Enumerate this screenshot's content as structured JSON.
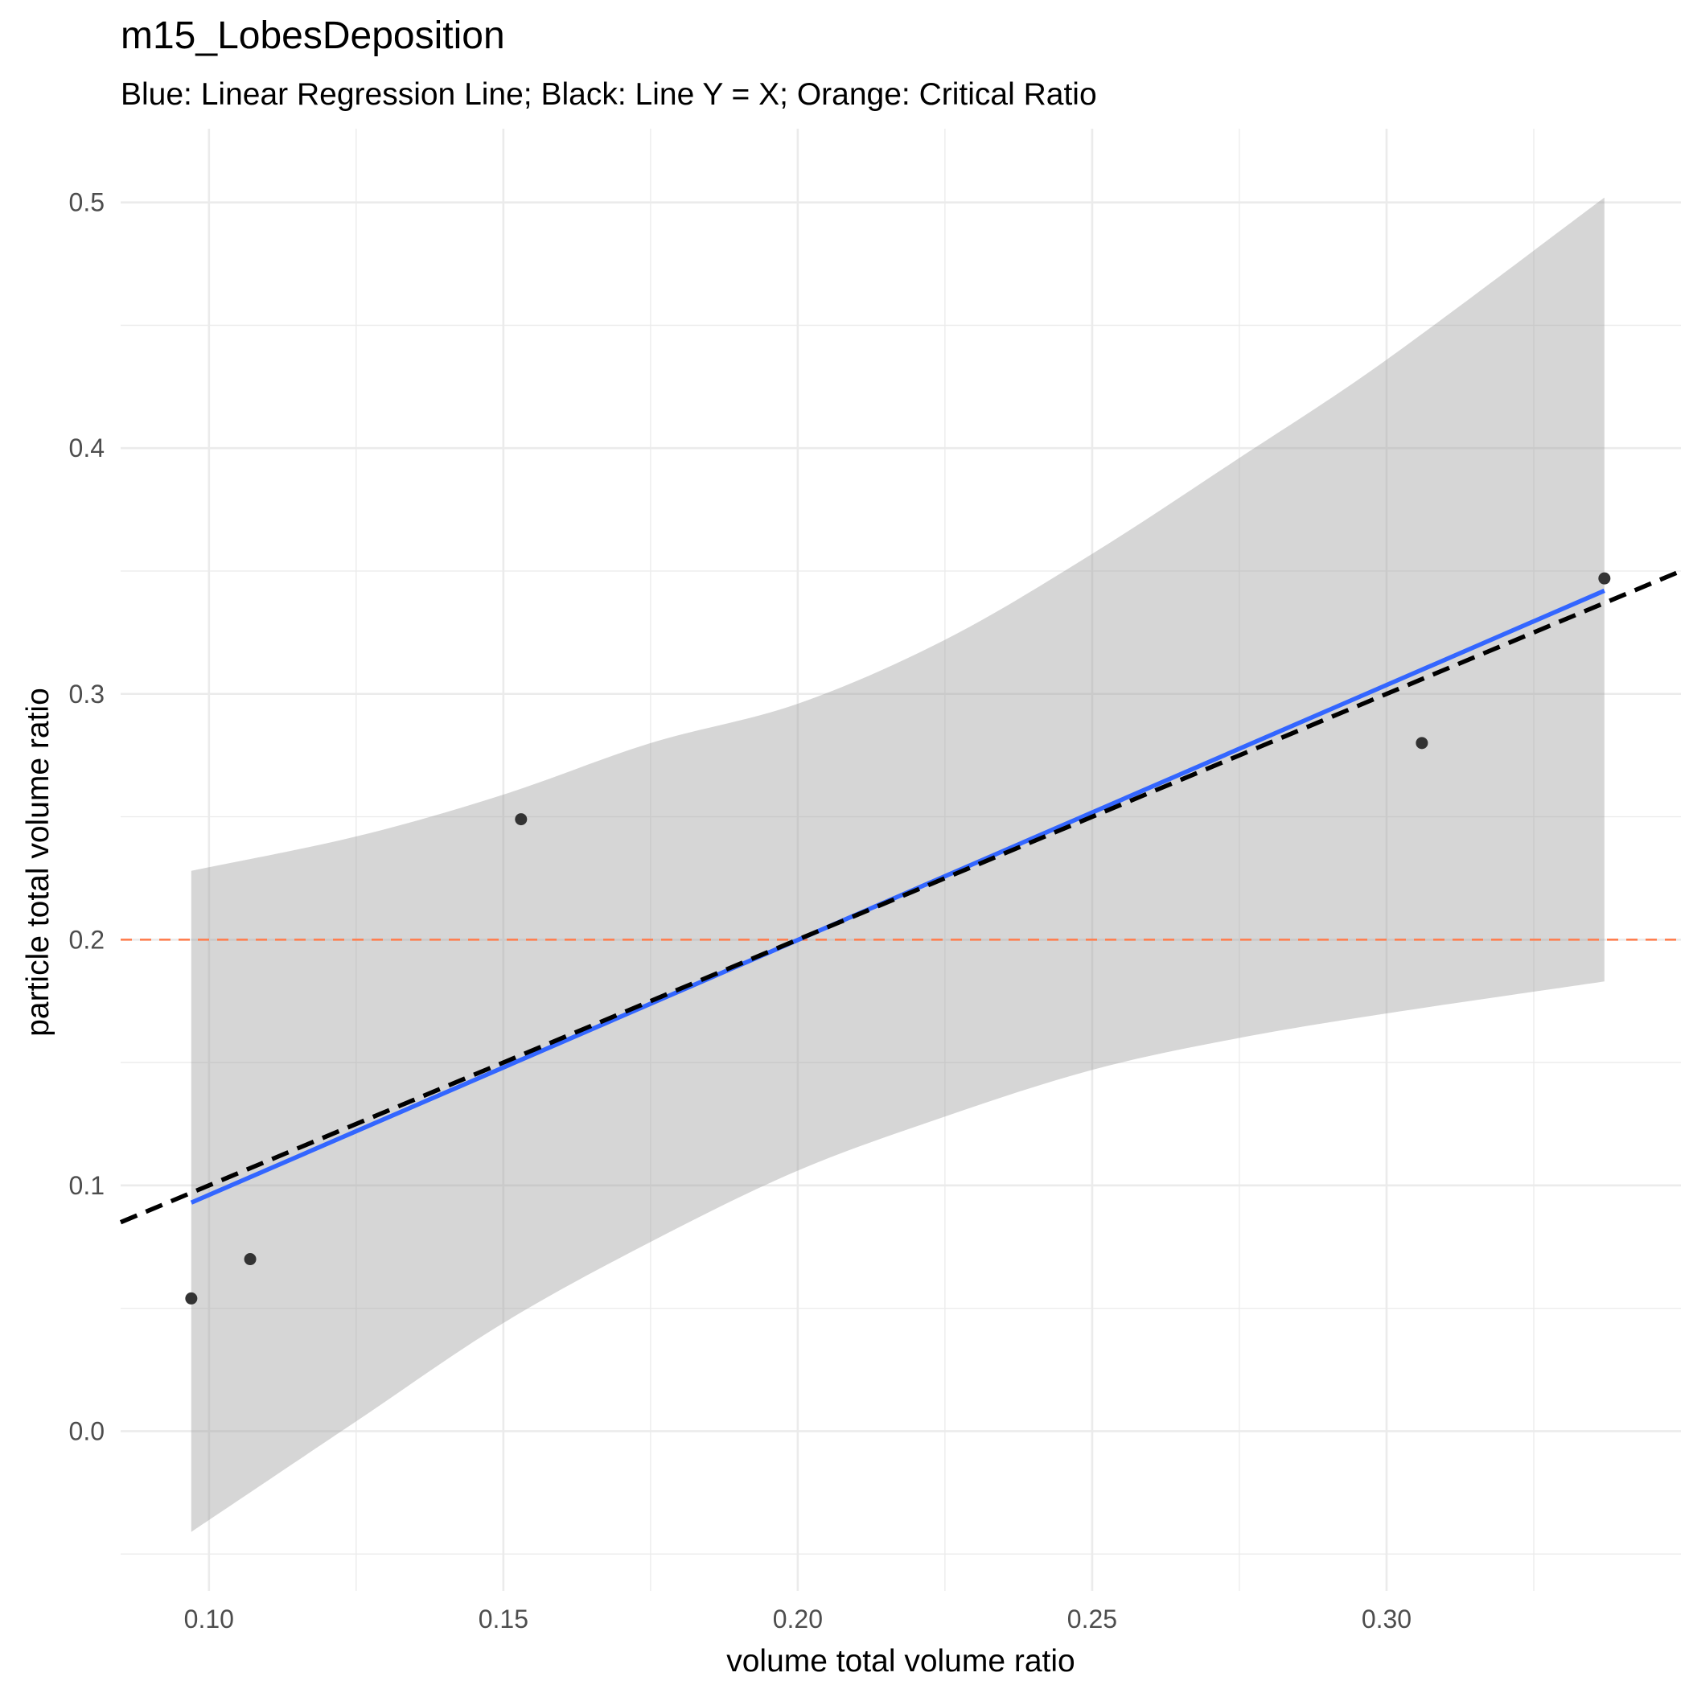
{
  "chart_data": {
    "type": "scatter",
    "title": "m15_LobesDeposition",
    "subtitle": "Blue: Linear Regression Line;  Black: Line Y = X; Orange: Critical Ratio",
    "xlabel": "volume total volume ratio",
    "ylabel": "particle total volume ratio",
    "xlim": [
      0.085,
      0.35
    ],
    "ylim": [
      -0.065,
      0.53
    ],
    "x_ticks": [
      0.1,
      0.15,
      0.2,
      0.25,
      0.3
    ],
    "x_tick_labels": [
      "0.10",
      "0.15",
      "0.20",
      "0.25",
      "0.30"
    ],
    "y_ticks": [
      0.0,
      0.1,
      0.2,
      0.3,
      0.4,
      0.5
    ],
    "y_tick_labels": [
      "0.0",
      "0.1",
      "0.2",
      "0.3",
      "0.4",
      "0.5"
    ],
    "x_minor_ticks": [
      0.125,
      0.175,
      0.225,
      0.275,
      0.325
    ],
    "y_minor_ticks": [
      -0.05,
      0.05,
      0.15,
      0.25,
      0.35,
      0.45
    ],
    "grid": true,
    "points": [
      {
        "x": 0.097,
        "y": 0.054
      },
      {
        "x": 0.107,
        "y": 0.07
      },
      {
        "x": 0.153,
        "y": 0.249
      },
      {
        "x": 0.306,
        "y": 0.28
      },
      {
        "x": 0.337,
        "y": 0.347
      }
    ],
    "regression": {
      "x_start": 0.097,
      "y_start": 0.093,
      "x_end": 0.337,
      "y_end": 0.342
    },
    "confidence_band": {
      "x": [
        0.097,
        0.125,
        0.15,
        0.175,
        0.2,
        0.225,
        0.25,
        0.275,
        0.3,
        0.337
      ],
      "upper": [
        0.228,
        0.242,
        0.259,
        0.28,
        0.296,
        0.322,
        0.357,
        0.396,
        0.436,
        0.502
      ],
      "lower": [
        -0.041,
        0.004,
        0.044,
        0.077,
        0.106,
        0.128,
        0.147,
        0.16,
        0.17,
        0.183
      ]
    },
    "identity_line": {
      "slope": 1,
      "intercept": 0
    },
    "critical_ratio": 0.2,
    "colors": {
      "regression": "#3366ff",
      "identity": "#000000",
      "critical": "#ff7f50",
      "band": "#999999",
      "points": "#333333"
    }
  }
}
